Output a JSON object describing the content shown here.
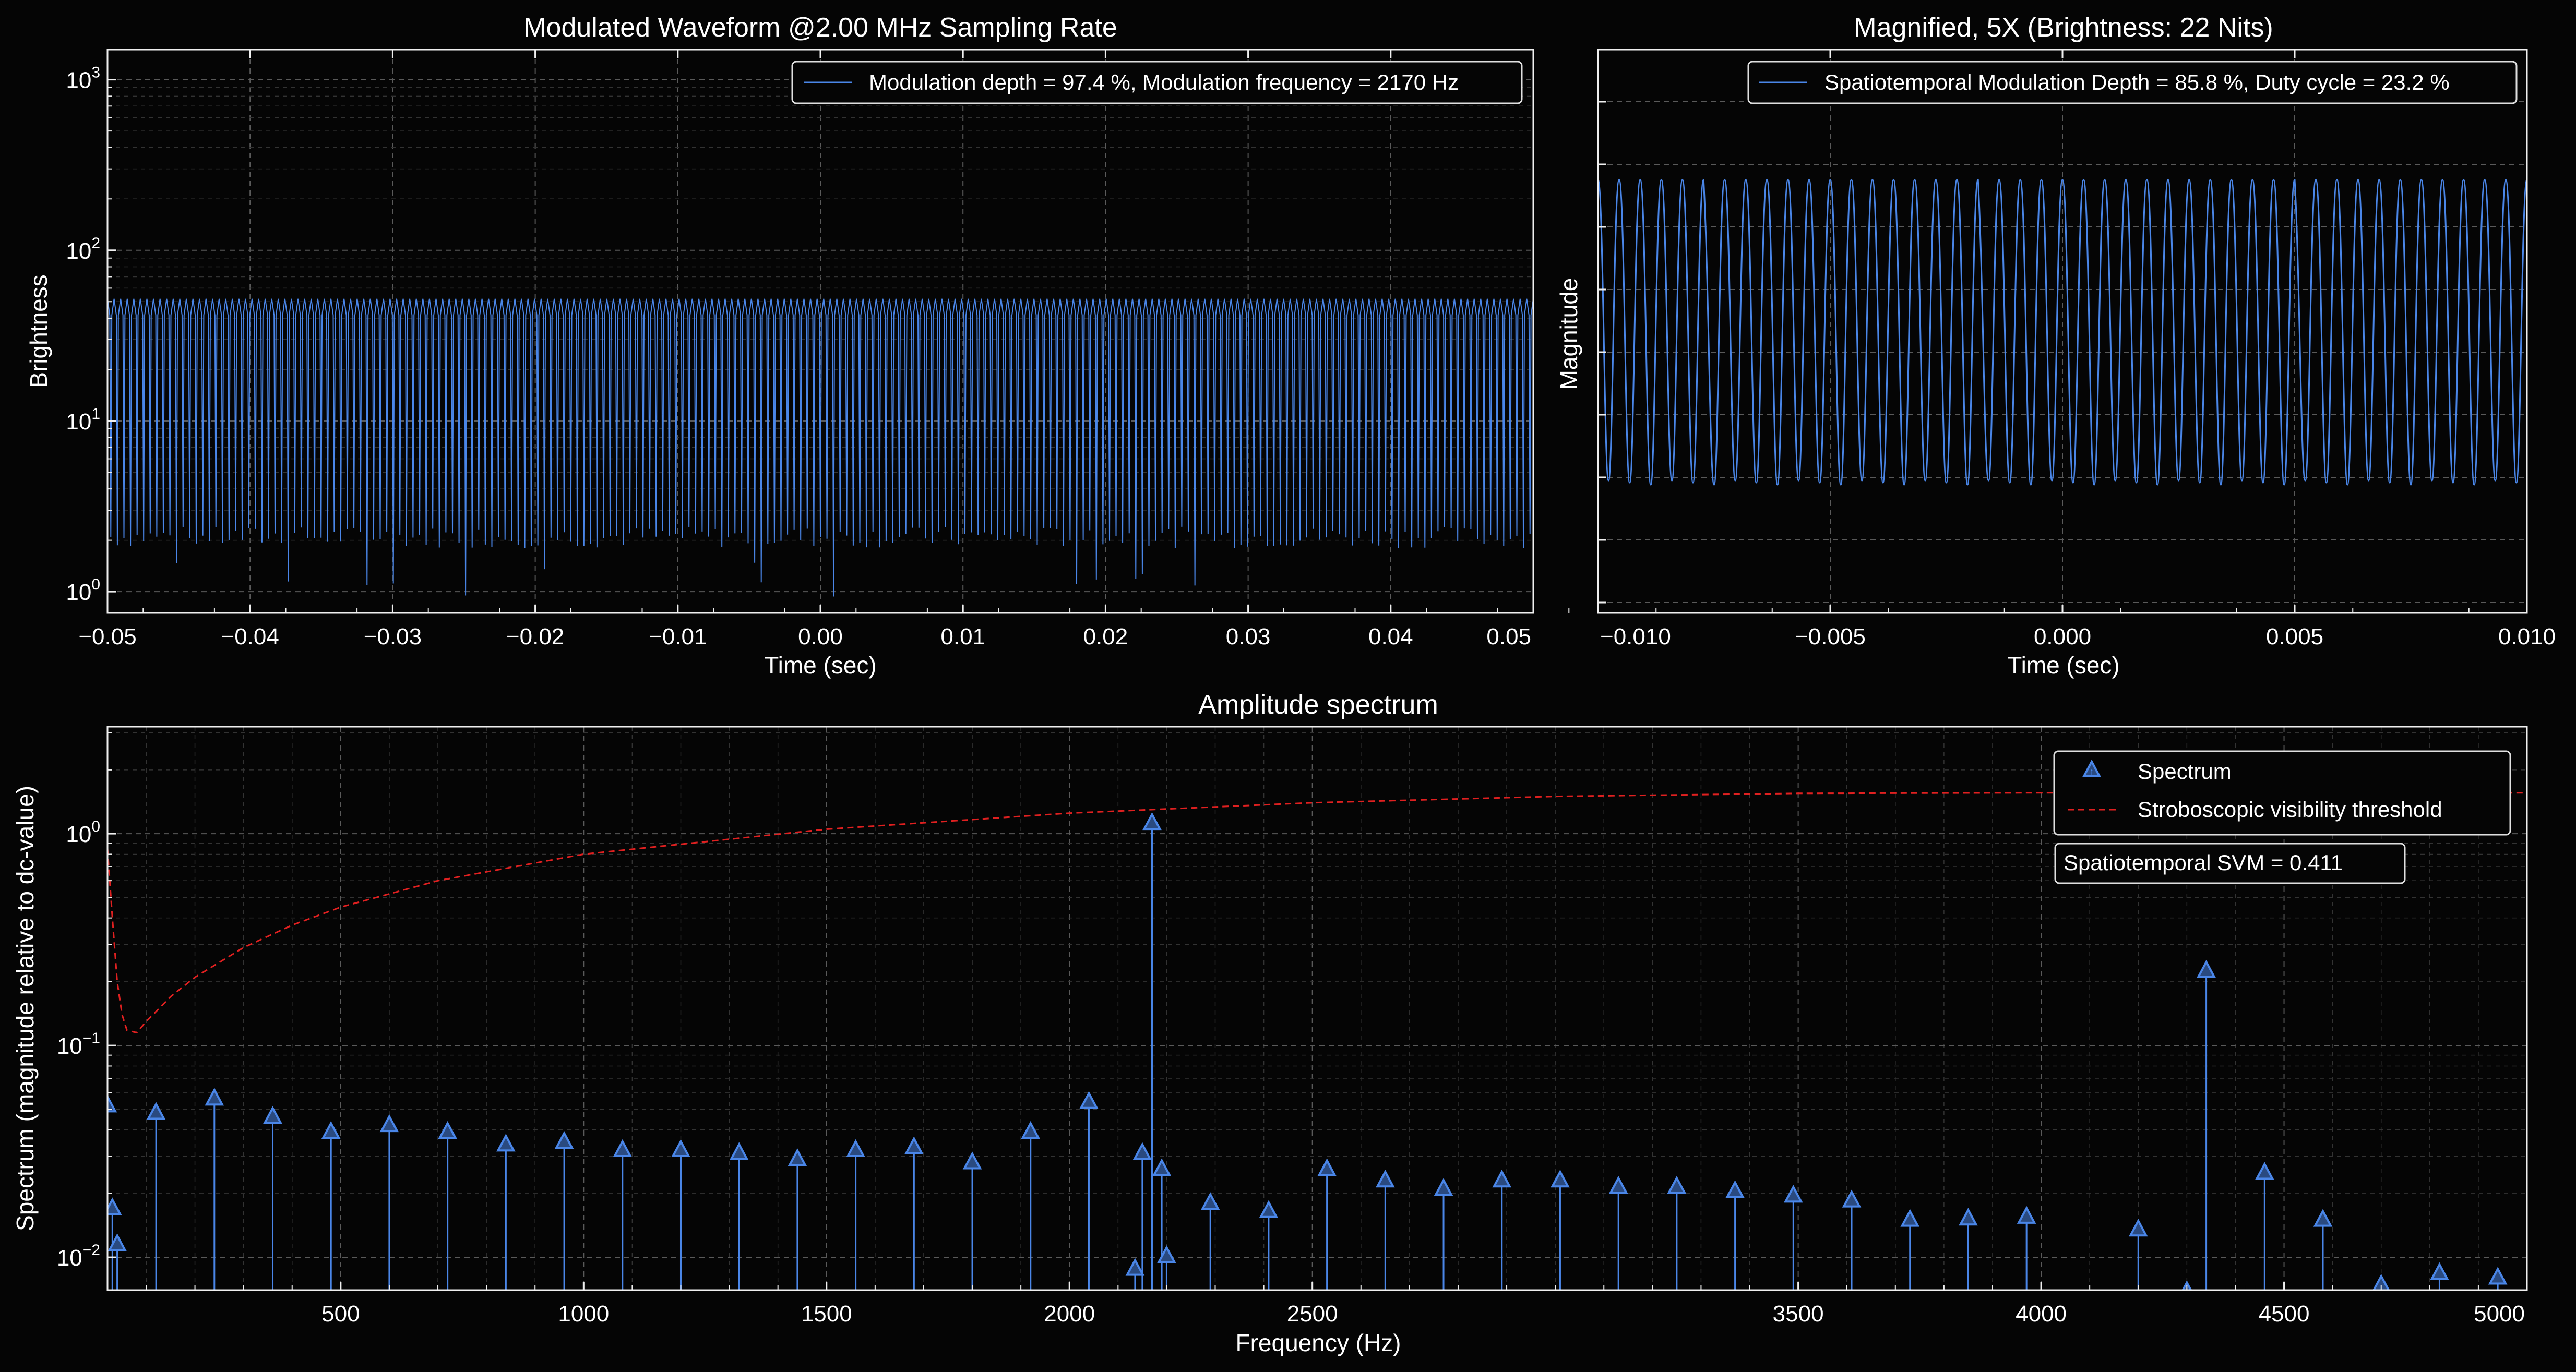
{
  "colors": {
    "background": "#050505",
    "series": "#4a86e8",
    "threshold": "#e02020",
    "text": "#ffffff"
  },
  "chart_data": [
    {
      "type": "line",
      "title": "Modulated Waveform @2.00 MHz Sampling Rate",
      "xlabel": "Time (sec)",
      "ylabel": "Brightness",
      "xlim": [
        -0.05,
        0.05
      ],
      "ylim": [
        0.75,
        1500
      ],
      "yscale": "log",
      "x_ticks": [
        "−0.05",
        "−0.04",
        "−0.03",
        "−0.02",
        "−0.01",
        "0.00",
        "0.01",
        "0.02",
        "0.03",
        "0.04",
        "0.05"
      ],
      "y_ticks": [
        {
          "base": "10",
          "exp": "0"
        },
        {
          "base": "10",
          "exp": "1"
        },
        {
          "base": "10",
          "exp": "2"
        },
        {
          "base": "10",
          "exp": "3"
        }
      ],
      "grid": true,
      "legend_position": "top-right",
      "series": [
        {
          "name": "Modulation depth = 97.4 %, Modulation frequency = 2170 Hz",
          "frequency_hz": 2170,
          "max": 52,
          "min_typical": 2.0,
          "min_extreme": 0.9
        }
      ]
    },
    {
      "type": "line",
      "title": "Magnified, 5X (Brightness: 22 Nits)",
      "xlabel": "Time (sec)",
      "ylabel": "Magnitude",
      "xlim": [
        -0.01,
        0.01
      ],
      "x_ticks": [
        "−0.010",
        "−0.005",
        "0.000",
        "0.005",
        "0.010"
      ],
      "grid": true,
      "legend_position": "top-right",
      "series": [
        {
          "name": "Spatiotemporal Modulation Depth = 85.8 %, Duty cycle = 23.2 %",
          "frequency_hz": 2170,
          "cycles_visible": 44
        }
      ]
    },
    {
      "type": "scatter",
      "title": "Amplitude spectrum",
      "xlabel": "Frequency (Hz)",
      "ylabel": "Spectrum (magnitude relative to dc-value)",
      "xlim": [
        20,
        5000
      ],
      "ylim": [
        0.007,
        3.2
      ],
      "yscale": "log",
      "x_ticks": [
        "500",
        "1000",
        "1500",
        "2000",
        "2500",
        "3500",
        "4000",
        "4500",
        "5000"
      ],
      "y_ticks": [
        {
          "base": "10",
          "exp": "−2"
        },
        {
          "base": "10",
          "exp": "−1"
        },
        {
          "base": "10",
          "exp": "0"
        }
      ],
      "grid": true,
      "legend_position": "top-right",
      "annotation": "Spatiotemporal SVM = 0.411",
      "series": [
        {
          "name": "Spectrum",
          "marker": "triangle",
          "x": [
            20,
            30,
            40,
            120,
            240,
            360,
            480,
            600,
            720,
            840,
            960,
            1080,
            1200,
            1320,
            1440,
            1560,
            1680,
            1800,
            1920,
            2040,
            2135,
            2150,
            2170,
            2190,
            2200,
            2290,
            2410,
            2530,
            2650,
            2770,
            2890,
            3010,
            3130,
            3250,
            3370,
            3490,
            3610,
            3730,
            3850,
            3970,
            4200,
            4300,
            4340,
            4460,
            4580,
            4700,
            4820,
            4940
          ],
          "y": [
            0.052,
            0.017,
            0.0115,
            0.048,
            0.056,
            0.046,
            0.039,
            0.042,
            0.039,
            0.034,
            0.035,
            0.032,
            0.032,
            0.031,
            0.029,
            0.032,
            0.033,
            0.028,
            0.039,
            0.054,
            0.0088,
            0.031,
            1.12,
            0.026,
            0.0101,
            0.018,
            0.0165,
            0.026,
            0.023,
            0.021,
            0.023,
            0.023,
            0.0215,
            0.0215,
            0.0205,
            0.0195,
            0.0185,
            0.015,
            0.0152,
            0.0155,
            0.0135,
            0.0069,
            0.225,
            0.025,
            0.015,
            0.0074,
            0.0084,
            0.008
          ]
        },
        {
          "name": "Stroboscopic visibility threshold",
          "style": "dashed",
          "x": [
            20,
            30,
            40,
            50,
            60,
            80,
            100,
            150,
            200,
            300,
            400,
            500,
            700,
            1000,
            1500,
            2000,
            2500,
            3000,
            3500,
            4000,
            4500,
            5000
          ],
          "y": [
            0.85,
            0.4,
            0.2,
            0.14,
            0.118,
            0.115,
            0.13,
            0.17,
            0.21,
            0.29,
            0.37,
            0.45,
            0.6,
            0.8,
            1.05,
            1.25,
            1.4,
            1.5,
            1.55,
            1.56,
            1.56,
            1.56
          ]
        }
      ]
    }
  ]
}
